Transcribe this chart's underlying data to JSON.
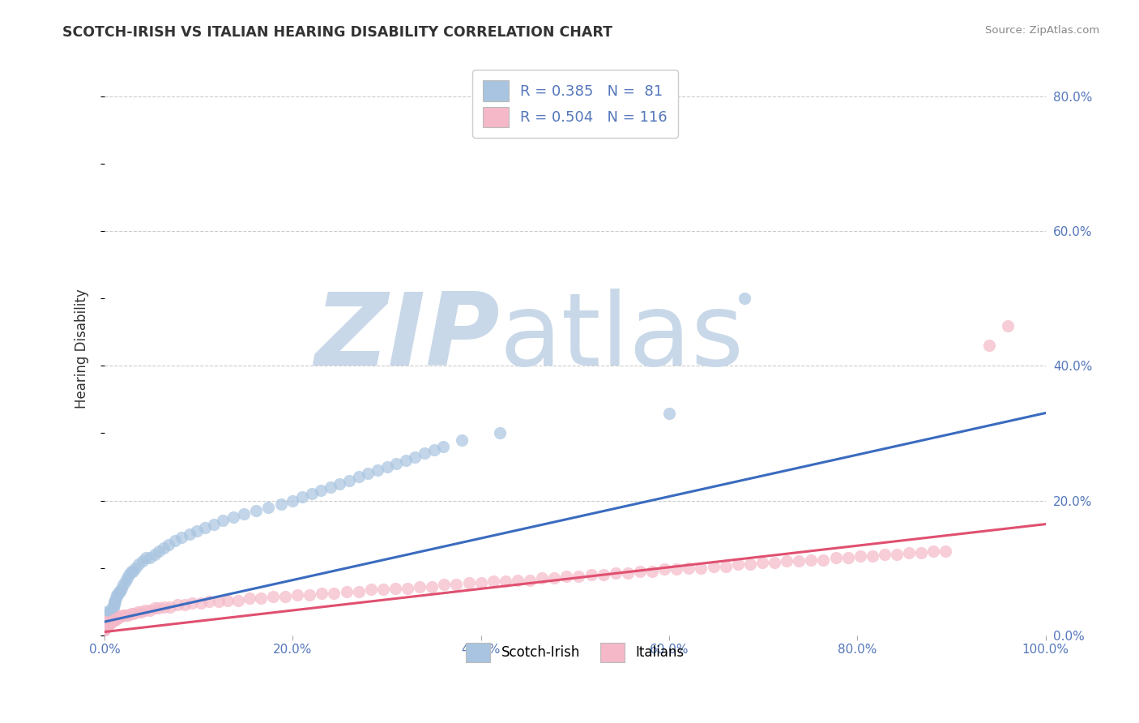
{
  "title": "SCOTCH-IRISH VS ITALIAN HEARING DISABILITY CORRELATION CHART",
  "source": "Source: ZipAtlas.com",
  "ylabel": "Hearing Disability",
  "series": [
    {
      "name": "Scotch-Irish",
      "R": 0.385,
      "N": 81,
      "scatter_color": "#a8c4e0",
      "line_color": "#3a6bbf",
      "x": [
        0.0,
        0.0,
        0.0,
        0.0,
        0.0,
        0.0,
        0.0,
        0.0,
        0.0,
        0.0,
        0.0,
        0.0,
        0.0,
        0.0,
        0.0,
        0.002,
        0.003,
        0.004,
        0.005,
        0.005,
        0.006,
        0.007,
        0.008,
        0.009,
        0.01,
        0.01,
        0.011,
        0.012,
        0.013,
        0.014,
        0.015,
        0.016,
        0.018,
        0.02,
        0.022,
        0.024,
        0.026,
        0.028,
        0.03,
        0.033,
        0.036,
        0.04,
        0.044,
        0.048,
        0.053,
        0.058,
        0.063,
        0.068,
        0.075,
        0.082,
        0.09,
        0.098,
        0.107,
        0.116,
        0.126,
        0.137,
        0.148,
        0.161,
        0.174,
        0.188,
        0.2,
        0.21,
        0.22,
        0.23,
        0.24,
        0.25,
        0.26,
        0.27,
        0.28,
        0.29,
        0.3,
        0.31,
        0.32,
        0.33,
        0.34,
        0.35,
        0.36,
        0.38,
        0.42,
        0.6,
        0.68
      ],
      "y": [
        0.01,
        0.01,
        0.015,
        0.015,
        0.02,
        0.02,
        0.02,
        0.025,
        0.025,
        0.025,
        0.025,
        0.03,
        0.03,
        0.03,
        0.035,
        0.025,
        0.025,
        0.03,
        0.03,
        0.035,
        0.03,
        0.03,
        0.04,
        0.04,
        0.045,
        0.05,
        0.05,
        0.055,
        0.06,
        0.06,
        0.065,
        0.065,
        0.07,
        0.075,
        0.08,
        0.085,
        0.09,
        0.095,
        0.095,
        0.1,
        0.105,
        0.11,
        0.115,
        0.115,
        0.12,
        0.125,
        0.13,
        0.135,
        0.14,
        0.145,
        0.15,
        0.155,
        0.16,
        0.165,
        0.17,
        0.175,
        0.18,
        0.185,
        0.19,
        0.195,
        0.2,
        0.205,
        0.21,
        0.215,
        0.22,
        0.225,
        0.23,
        0.235,
        0.24,
        0.245,
        0.25,
        0.255,
        0.26,
        0.265,
        0.27,
        0.275,
        0.28,
        0.29,
        0.3,
        0.33,
        0.5
      ],
      "trend_x": [
        0.0,
        1.0
      ],
      "trend_y": [
        0.02,
        0.33
      ]
    },
    {
      "name": "Italians",
      "R": 0.504,
      "N": 116,
      "scatter_color": "#f4b8c8",
      "line_color": "#e05070",
      "x": [
        0.0,
        0.0,
        0.0,
        0.0,
        0.0,
        0.0,
        0.0,
        0.0,
        0.0,
        0.0,
        0.0,
        0.0,
        0.0,
        0.0,
        0.0,
        0.0,
        0.0,
        0.0,
        0.0,
        0.0,
        0.001,
        0.002,
        0.003,
        0.004,
        0.005,
        0.006,
        0.007,
        0.008,
        0.009,
        0.01,
        0.011,
        0.012,
        0.014,
        0.016,
        0.018,
        0.02,
        0.022,
        0.025,
        0.028,
        0.031,
        0.035,
        0.039,
        0.043,
        0.048,
        0.053,
        0.058,
        0.064,
        0.07,
        0.077,
        0.085,
        0.093,
        0.102,
        0.111,
        0.121,
        0.131,
        0.142,
        0.154,
        0.166,
        0.179,
        0.192,
        0.205,
        0.218,
        0.231,
        0.244,
        0.257,
        0.27,
        0.283,
        0.296,
        0.309,
        0.322,
        0.335,
        0.348,
        0.361,
        0.374,
        0.387,
        0.4,
        0.413,
        0.426,
        0.439,
        0.452,
        0.465,
        0.478,
        0.491,
        0.504,
        0.517,
        0.53,
        0.543,
        0.556,
        0.569,
        0.582,
        0.595,
        0.608,
        0.621,
        0.634,
        0.647,
        0.66,
        0.673,
        0.686,
        0.699,
        0.712,
        0.725,
        0.738,
        0.751,
        0.764,
        0.777,
        0.79,
        0.803,
        0.816,
        0.829,
        0.842,
        0.855,
        0.868,
        0.881,
        0.894,
        0.94,
        0.96
      ],
      "y": [
        0.008,
        0.008,
        0.01,
        0.01,
        0.01,
        0.01,
        0.012,
        0.012,
        0.012,
        0.015,
        0.015,
        0.015,
        0.015,
        0.018,
        0.018,
        0.018,
        0.02,
        0.02,
        0.02,
        0.02,
        0.012,
        0.012,
        0.015,
        0.015,
        0.018,
        0.018,
        0.02,
        0.02,
        0.022,
        0.022,
        0.022,
        0.025,
        0.025,
        0.028,
        0.028,
        0.03,
        0.03,
        0.03,
        0.032,
        0.032,
        0.035,
        0.035,
        0.037,
        0.037,
        0.04,
        0.04,
        0.042,
        0.042,
        0.045,
        0.045,
        0.048,
        0.048,
        0.05,
        0.05,
        0.052,
        0.052,
        0.055,
        0.055,
        0.057,
        0.057,
        0.06,
        0.06,
        0.062,
        0.062,
        0.065,
        0.065,
        0.068,
        0.068,
        0.07,
        0.07,
        0.072,
        0.072,
        0.075,
        0.075,
        0.078,
        0.078,
        0.08,
        0.08,
        0.082,
        0.082,
        0.085,
        0.085,
        0.087,
        0.087,
        0.09,
        0.09,
        0.092,
        0.092,
        0.095,
        0.095,
        0.098,
        0.098,
        0.1,
        0.1,
        0.102,
        0.102,
        0.105,
        0.105,
        0.108,
        0.108,
        0.11,
        0.11,
        0.112,
        0.112,
        0.115,
        0.115,
        0.118,
        0.118,
        0.12,
        0.12,
        0.122,
        0.122,
        0.125,
        0.125,
        0.43,
        0.46
      ],
      "trend_x": [
        0.0,
        1.0
      ],
      "trend_y": [
        0.005,
        0.165
      ]
    }
  ],
  "xlim": [
    0.0,
    1.0
  ],
  "ylim": [
    0.0,
    0.85
  ],
  "right_yticks": [
    0.0,
    0.2,
    0.4,
    0.6,
    0.8
  ],
  "right_ytick_labels": [
    "0.0%",
    "20.0%",
    "40.0%",
    "60.0%",
    "80.0%"
  ],
  "xticks": [
    0.0,
    0.2,
    0.4,
    0.6,
    0.8,
    1.0
  ],
  "xtick_labels": [
    "0.0%",
    "20.0%",
    "40.0%",
    "60.0%",
    "80.0%",
    "100.0%"
  ],
  "grid_color": "#cccccc",
  "bg_color": "#ffffff",
  "title_color": "#333333",
  "axis_label_color": "#5577bb",
  "watermark_zip": "ZIP",
  "watermark_atlas": "atlas",
  "watermark_color_zip": "#c8d8e8",
  "watermark_color_atlas": "#c8d8e8"
}
